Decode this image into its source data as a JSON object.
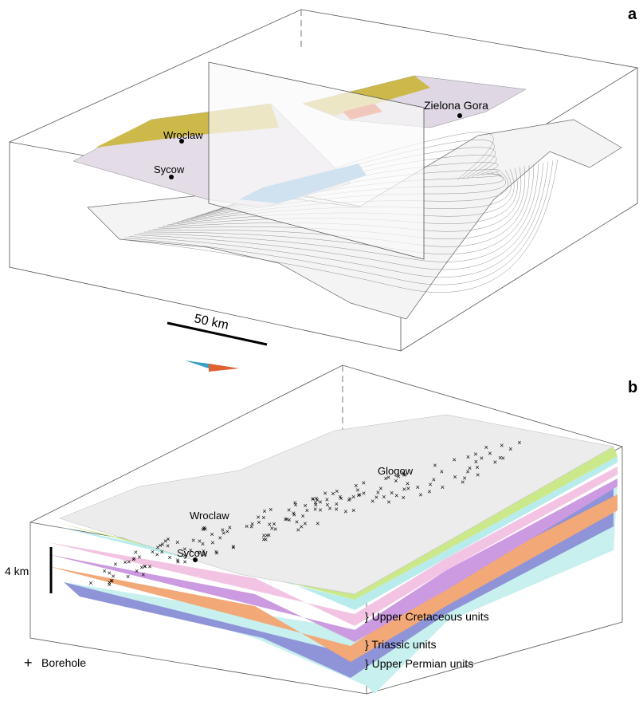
{
  "panel_a": {
    "label": "a",
    "places": [
      "Wroclaw",
      "Sycow",
      "Zielona Gora"
    ],
    "scale_bar": "50 km"
  },
  "panel_b": {
    "label": "b",
    "places": [
      "Wroclaw",
      "Glogow",
      "Sycow"
    ],
    "scale_bar": "4 km",
    "units": [
      "Upper Cretaceous units",
      "Triassic units",
      "Upper Permian units"
    ],
    "legend": "Borehole"
  }
}
